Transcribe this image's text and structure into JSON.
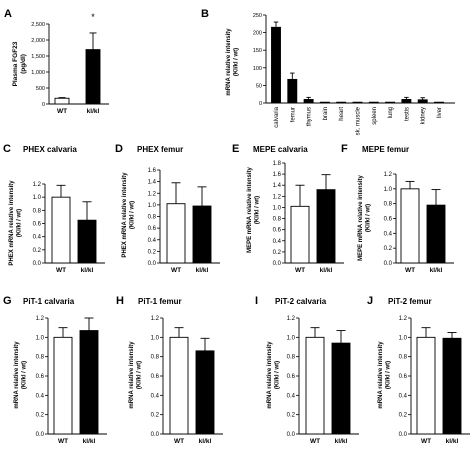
{
  "figure": {
    "panel_letters": [
      "A",
      "B",
      "C",
      "D",
      "E",
      "F",
      "G",
      "H",
      "I",
      "J"
    ]
  },
  "chart_data": [
    {
      "id": "A",
      "type": "bar",
      "title": "",
      "xlabel": "",
      "ylabel": "Plasma FGF23 (pg/dl)",
      "categories": [
        "WT",
        "kl/kl"
      ],
      "values": [
        180,
        1700
      ],
      "errors": [
        20,
        520
      ],
      "fill": [
        "#ffffff",
        "#000000"
      ],
      "ylim": [
        0,
        2500
      ],
      "yticks": [
        "0",
        "500",
        "1,000",
        "1,500",
        "2,000",
        "2,500"
      ],
      "annotations": [
        "*"
      ]
    },
    {
      "id": "B",
      "type": "bar",
      "title": "",
      "xlabel": "",
      "ylabel": "mRNA relative intensity (Kl/kl / wt)",
      "categories": [
        "calvaria",
        "femur",
        "thymus",
        "brain",
        "heart",
        "sk. muscle",
        "spleen",
        "lung",
        "testis",
        "kidney",
        "liver"
      ],
      "values": [
        215,
        67,
        10,
        1,
        1,
        1,
        1,
        1,
        10,
        9,
        1
      ],
      "errors": [
        15,
        18,
        6,
        0,
        0,
        0,
        0,
        0,
        6,
        6,
        0
      ],
      "ylim": [
        0,
        250
      ],
      "yticks": [
        "0",
        "50",
        "100",
        "150",
        "200",
        "250"
      ]
    },
    {
      "id": "C",
      "type": "bar",
      "title": "PHEX calvaria",
      "ylabel": "PHEX mRNA relative intensity (Kl/kl / wt)",
      "categories": [
        "WT",
        "kl/kl"
      ],
      "values": [
        1.0,
        0.65
      ],
      "errors": [
        0.18,
        0.28
      ],
      "ylim": [
        0,
        1.2
      ],
      "yticks": [
        "0.0",
        "0.2",
        "0.4",
        "0.6",
        "0.8",
        "1.0",
        "1.2"
      ]
    },
    {
      "id": "D",
      "type": "bar",
      "title": "PHEX femur",
      "ylabel": "PHEX mRNA relative intensity (Kl/kl / wt)",
      "categories": [
        "WT",
        "kl/kl"
      ],
      "values": [
        1.02,
        0.98
      ],
      "errors": [
        0.36,
        0.33
      ],
      "ylim": [
        0,
        1.6
      ],
      "yticks": [
        "0.0",
        "0.2",
        "0.4",
        "0.6",
        "0.8",
        "1.0",
        "1.2",
        "1.4",
        "1.6"
      ]
    },
    {
      "id": "E",
      "type": "bar",
      "title": "MEPE calvaria",
      "ylabel": "MEPE mRNA relative intensity (Kl/kl / wt)",
      "categories": [
        "WT",
        "kl/kl"
      ],
      "values": [
        1.02,
        1.32
      ],
      "errors": [
        0.38,
        0.27
      ],
      "ylim": [
        0,
        1.8
      ],
      "yticks": [
        "0.0",
        "0.2",
        "0.4",
        "0.6",
        "0.8",
        "1.0",
        "1.2",
        "1.4",
        "1.6",
        "1.8"
      ]
    },
    {
      "id": "F",
      "type": "bar",
      "title": "MEPE femur",
      "ylabel": "MEPE mRNA relative intensity (Kl/kl / wt)",
      "categories": [
        "WT",
        "kl/kl"
      ],
      "values": [
        1.0,
        0.78
      ],
      "errors": [
        0.1,
        0.21
      ],
      "ylim": [
        0,
        1.2
      ],
      "yticks": [
        "0.0",
        "0.2",
        "0.4",
        "0.6",
        "0.8",
        "1.0",
        "1.2"
      ]
    },
    {
      "id": "G",
      "type": "bar",
      "title": "PiT-1 calvaria",
      "ylabel": "mRNA relative intensity (Kl/kl / wt)",
      "categories": [
        "WT",
        "kl/kl"
      ],
      "values": [
        1.0,
        1.07
      ],
      "errors": [
        0.1,
        0.13
      ],
      "ylim": [
        0,
        1.2
      ],
      "yticks": [
        "0.0",
        "0.2",
        "0.4",
        "0.6",
        "0.8",
        "1.0",
        "1.2"
      ]
    },
    {
      "id": "H",
      "type": "bar",
      "title": "PiT-1 femur",
      "ylabel": "mRNA relative intensity (Kl/kl / wt)",
      "categories": [
        "WT",
        "kl/kl"
      ],
      "values": [
        1.0,
        0.86
      ],
      "errors": [
        0.1,
        0.13
      ],
      "ylim": [
        0,
        1.2
      ],
      "yticks": [
        "0.0",
        "0.2",
        "0.4",
        "0.6",
        "0.8",
        "1.0",
        "1.2"
      ]
    },
    {
      "id": "I",
      "type": "bar",
      "title": "PiT-2 calvaria",
      "ylabel": "mRNA relative intensity (Kl/kl / wt)",
      "categories": [
        "WT",
        "kl/kl"
      ],
      "values": [
        1.0,
        0.94
      ],
      "errors": [
        0.1,
        0.13
      ],
      "ylim": [
        0,
        1.2
      ],
      "yticks": [
        "0.0",
        "0.2",
        "0.4",
        "0.6",
        "0.8",
        "1.0",
        "1.2"
      ]
    },
    {
      "id": "J",
      "type": "bar",
      "title": "PiT-2 femur",
      "ylabel": "mRNA relative intensity (Kl/kl / wt)",
      "categories": [
        "WT",
        "kl/kl"
      ],
      "values": [
        1.0,
        0.99
      ],
      "errors": [
        0.1,
        0.06
      ],
      "ylim": [
        0,
        1.2
      ],
      "yticks": [
        "0.0",
        "0.2",
        "0.4",
        "0.6",
        "0.8",
        "1.0",
        "1.2"
      ]
    }
  ]
}
